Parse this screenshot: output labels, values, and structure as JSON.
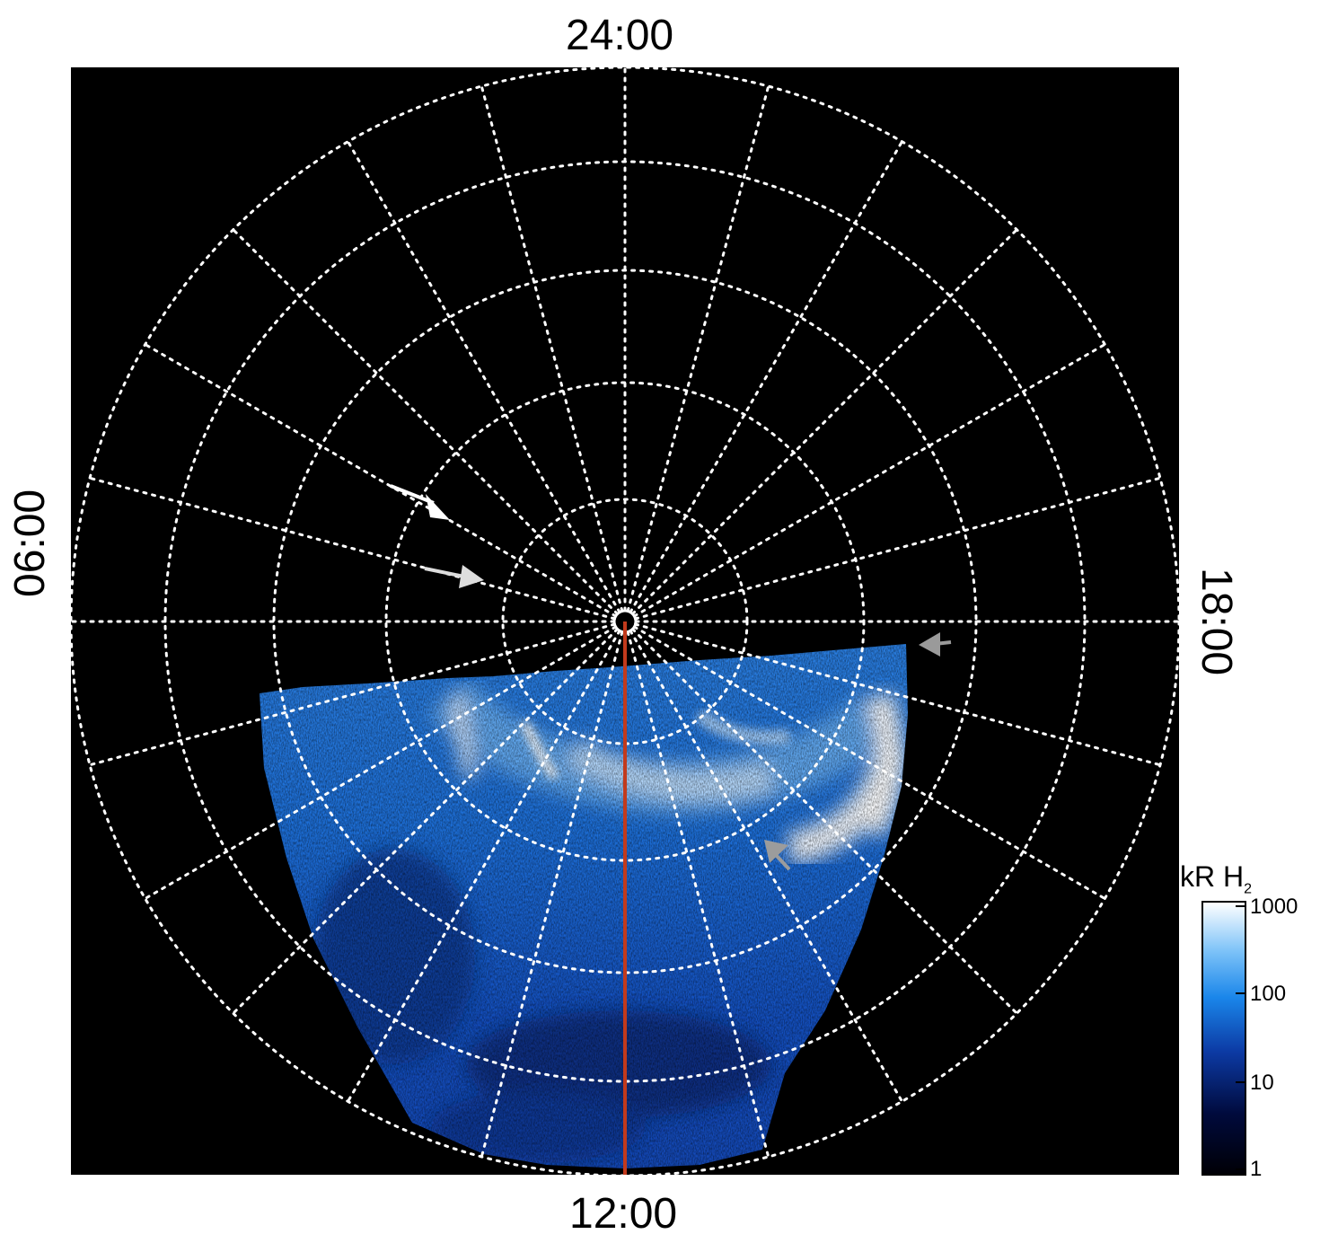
{
  "labels": {
    "top": "24:00",
    "bottom": "12:00",
    "left": "06:00",
    "right": "18:00"
  },
  "colorbar": {
    "title": "kR H",
    "title_sub": "2",
    "ticks": [
      "1000",
      "100",
      "10",
      "1"
    ]
  },
  "colors": {
    "background": "#000000",
    "grid": "#ffffff",
    "meridian_line": "#c23a1c",
    "aurora": "#1a86ea"
  }
}
